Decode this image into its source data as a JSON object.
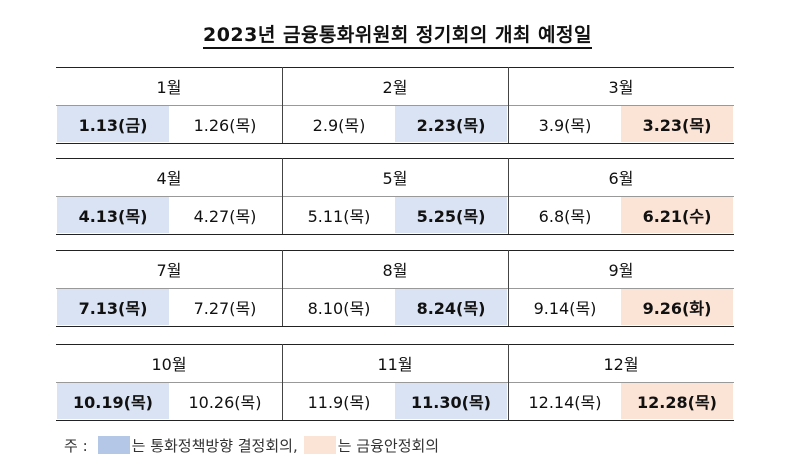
{
  "title": "2023년 금융통화위원회 정기회의 개최 예정일",
  "colors": {
    "policy_meeting": "#dae3f3",
    "stability_meeting": "#fbe3d6"
  },
  "rows": [
    {
      "months": [
        {
          "label": "1월",
          "dates": [
            {
              "text": "1.13(금)",
              "type": "policy"
            },
            {
              "text": "1.26(목)",
              "type": "regular"
            }
          ]
        },
        {
          "label": "2월",
          "dates": [
            {
              "text": "2.9(목)",
              "type": "regular"
            },
            {
              "text": "2.23(목)",
              "type": "policy"
            }
          ]
        },
        {
          "label": "3월",
          "dates": [
            {
              "text": "3.9(목)",
              "type": "regular"
            },
            {
              "text": "3.23(목)",
              "type": "stability"
            }
          ]
        }
      ]
    },
    {
      "months": [
        {
          "label": "4월",
          "dates": [
            {
              "text": "4.13(목)",
              "type": "policy"
            },
            {
              "text": "4.27(목)",
              "type": "regular"
            }
          ]
        },
        {
          "label": "5월",
          "dates": [
            {
              "text": "5.11(목)",
              "type": "regular"
            },
            {
              "text": "5.25(목)",
              "type": "policy"
            }
          ]
        },
        {
          "label": "6월",
          "dates": [
            {
              "text": "6.8(목)",
              "type": "regular"
            },
            {
              "text": "6.21(수)",
              "type": "stability"
            }
          ]
        }
      ]
    },
    {
      "months": [
        {
          "label": "7월",
          "dates": [
            {
              "text": "7.13(목)",
              "type": "policy"
            },
            {
              "text": "7.27(목)",
              "type": "regular"
            }
          ]
        },
        {
          "label": "8월",
          "dates": [
            {
              "text": "8.10(목)",
              "type": "regular"
            },
            {
              "text": "8.24(목)",
              "type": "policy"
            }
          ]
        },
        {
          "label": "9월",
          "dates": [
            {
              "text": "9.14(목)",
              "type": "regular"
            },
            {
              "text": "9.26(화)",
              "type": "stability"
            }
          ]
        }
      ]
    },
    {
      "months": [
        {
          "label": "10월",
          "dates": [
            {
              "text": "10.19(목)",
              "type": "policy"
            },
            {
              "text": "10.26(목)",
              "type": "regular"
            }
          ]
        },
        {
          "label": "11월",
          "dates": [
            {
              "text": "11.9(목)",
              "type": "regular"
            },
            {
              "text": "11.30(목)",
              "type": "policy"
            }
          ]
        },
        {
          "label": "12월",
          "dates": [
            {
              "text": "12.14(목)",
              "type": "regular"
            },
            {
              "text": "12.28(목)",
              "type": "stability"
            }
          ]
        }
      ]
    }
  ],
  "note": {
    "prefix": "주 :",
    "policy_text": "는 통화정책방향 결정회의,",
    "stability_text": "는 금융안정회의"
  }
}
